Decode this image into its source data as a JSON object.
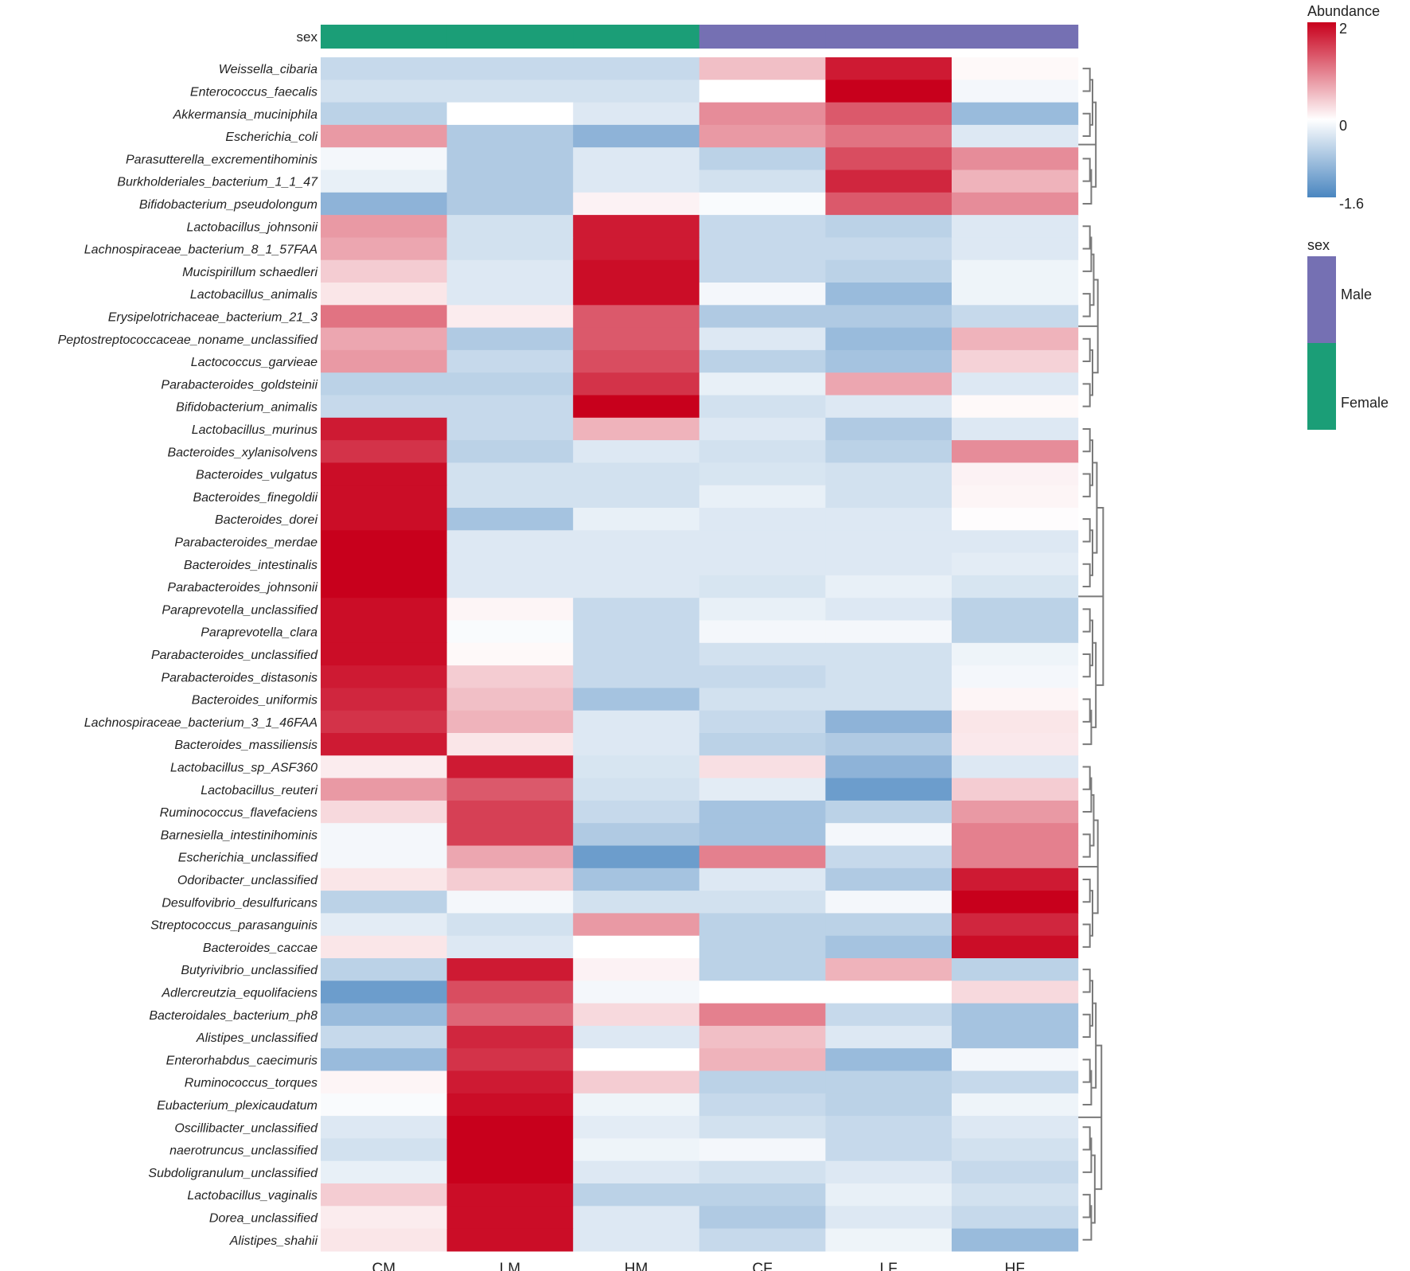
{
  "chart_data": {
    "type": "heatmap",
    "columns": [
      "CM",
      "LM",
      "HM",
      "CF",
      "LF",
      "HF"
    ],
    "column_annotation": {
      "title": "sex",
      "values": [
        "Female",
        "Female",
        "Female",
        "Male",
        "Male",
        "Male"
      ]
    },
    "rows": [
      "Weissella_cibaria",
      "Enterococcus_faecalis",
      "Akkermansia_muciniphila",
      "Escherichia_coli",
      "Parasutterella_excrementihominis",
      "Burkholderiales_bacterium_1_1_47",
      "Bifidobacterium_pseudolongum",
      "Lactobacillus_johnsonii",
      "Lachnospiraceae_bacterium_8_1_57FAA",
      "Mucispirillum schaedleri",
      "Lactobacillus_animalis",
      "Erysipelotrichaceae_bacterium_21_3",
      "Peptostreptococcaceae_noname_unclassified",
      "Lactococcus_garvieae",
      "Parabacteroides_goldsteinii",
      "Bifidobacterium_animalis",
      "Lactobacillus_murinus",
      "Bacteroides_xylanisolvens",
      "Bacteroides_vulgatus",
      "Bacteroides_finegoldii",
      "Bacteroides_dorei",
      "Parabacteroides_merdae",
      "Bacteroides_intestinalis",
      "Parabacteroides_johnsonii",
      "Paraprevotella_unclassified",
      "Paraprevotella_clara",
      "Parabacteroides_unclassified",
      "Parabacteroides_distasonis",
      "Bacteroides_uniformis",
      "Lachnospiraceae_bacterium_3_1_46FAA",
      "Bacteroides_massiliensis",
      "Lactobacillus_sp_ASF360",
      "Lactobacillus_reuteri",
      "Ruminococcus_flavefaciens",
      "Barnesiella_intestinihominis",
      "Escherichia_unclassified",
      "Odoribacter_unclassified",
      "Desulfovibrio_desulfuricans",
      "Streptococcus_parasanguinis",
      "Bacteroides_caccae",
      "Butyrivibrio_unclassified",
      "Adlercreutzia_equolifaciens",
      "Bacteroidales_bacterium_ph8",
      "Alistipes_unclassified",
      "Enterorhabdus_caecimuris",
      "Ruminococcus_torques",
      "Eubacterium_plexicaudatum",
      "Oscillibacter_unclassified",
      "naerotruncus_unclassified",
      "Subdoligranulum_unclassified",
      "Lactobacillus_vaginalis",
      "Dorea_unclassified",
      "Alistipes_shahii"
    ],
    "values": [
      [
        -0.5,
        -0.5,
        -0.5,
        0.5,
        1.8,
        0.05
      ],
      [
        -0.4,
        -0.4,
        -0.4,
        0.0,
        2.0,
        -0.1
      ],
      [
        -0.6,
        0.0,
        -0.3,
        0.9,
        1.3,
        -0.9
      ],
      [
        0.8,
        -0.7,
        -1.0,
        0.8,
        1.1,
        -0.3
      ],
      [
        -0.1,
        -0.7,
        -0.3,
        -0.6,
        1.4,
        0.9
      ],
      [
        -0.2,
        -0.7,
        -0.3,
        -0.4,
        1.7,
        0.6
      ],
      [
        -1.0,
        -0.7,
        0.1,
        -0.05,
        1.3,
        0.9
      ],
      [
        0.8,
        -0.4,
        1.8,
        -0.5,
        -0.6,
        -0.3
      ],
      [
        0.7,
        -0.4,
        1.8,
        -0.5,
        -0.5,
        -0.3
      ],
      [
        0.4,
        -0.3,
        1.9,
        -0.5,
        -0.6,
        -0.15
      ],
      [
        0.2,
        -0.3,
        1.9,
        -0.1,
        -0.9,
        -0.15
      ],
      [
        1.1,
        0.15,
        1.3,
        -0.7,
        -0.7,
        -0.5
      ],
      [
        0.7,
        -0.7,
        1.3,
        -0.3,
        -0.9,
        0.6
      ],
      [
        0.8,
        -0.5,
        1.4,
        -0.6,
        -0.8,
        0.35
      ],
      [
        -0.6,
        -0.6,
        1.6,
        -0.2,
        0.7,
        -0.3
      ],
      [
        -0.5,
        -0.5,
        2.0,
        -0.4,
        -0.3,
        0.05
      ],
      [
        1.8,
        -0.5,
        0.6,
        -0.3,
        -0.7,
        -0.3
      ],
      [
        1.6,
        -0.6,
        -0.3,
        -0.4,
        -0.6,
        0.9
      ],
      [
        1.9,
        -0.4,
        -0.4,
        -0.35,
        -0.4,
        0.1
      ],
      [
        1.9,
        -0.4,
        -0.4,
        -0.2,
        -0.4,
        0.08
      ],
      [
        1.9,
        -0.8,
        -0.2,
        -0.3,
        -0.3,
        0.02
      ],
      [
        2.0,
        -0.3,
        -0.3,
        -0.3,
        -0.3,
        -0.3
      ],
      [
        2.0,
        -0.3,
        -0.3,
        -0.3,
        -0.3,
        -0.25
      ],
      [
        2.0,
        -0.3,
        -0.3,
        -0.35,
        -0.2,
        -0.35
      ],
      [
        1.9,
        0.08,
        -0.5,
        -0.2,
        -0.3,
        -0.6
      ],
      [
        1.9,
        -0.05,
        -0.5,
        -0.1,
        -0.1,
        -0.6
      ],
      [
        1.9,
        0.05,
        -0.5,
        -0.4,
        -0.4,
        -0.15
      ],
      [
        1.8,
        0.4,
        -0.5,
        -0.5,
        -0.4,
        -0.1
      ],
      [
        1.7,
        0.5,
        -0.8,
        -0.4,
        -0.4,
        0.08
      ],
      [
        1.6,
        0.6,
        -0.3,
        -0.5,
        -1.0,
        0.2
      ],
      [
        1.8,
        0.2,
        -0.3,
        -0.6,
        -0.7,
        0.18
      ],
      [
        0.15,
        1.8,
        -0.35,
        0.25,
        -1.0,
        -0.3
      ],
      [
        0.8,
        1.3,
        -0.4,
        -0.25,
        -1.3,
        0.4
      ],
      [
        0.3,
        1.5,
        -0.5,
        -0.8,
        -0.6,
        0.8
      ],
      [
        -0.1,
        1.5,
        -0.7,
        -0.8,
        -0.1,
        1.0
      ],
      [
        -0.1,
        0.7,
        -1.3,
        1.0,
        -0.5,
        1.0
      ],
      [
        0.2,
        0.4,
        -0.8,
        -0.3,
        -0.7,
        1.8
      ],
      [
        -0.6,
        -0.1,
        -0.4,
        -0.4,
        -0.1,
        2.0
      ],
      [
        -0.25,
        -0.4,
        0.8,
        -0.6,
        -0.6,
        1.7
      ],
      [
        0.2,
        -0.3,
        0.0,
        -0.6,
        -0.8,
        1.9
      ],
      [
        -0.6,
        1.8,
        0.1,
        -0.6,
        0.6,
        -0.6
      ],
      [
        -1.3,
        1.4,
        -0.1,
        0.0,
        0.0,
        0.3
      ],
      [
        -0.9,
        1.2,
        0.3,
        1.0,
        -0.5,
        -0.8
      ],
      [
        -0.5,
        1.7,
        -0.3,
        0.5,
        -0.3,
        -0.8
      ],
      [
        -0.9,
        1.6,
        0.0,
        0.6,
        -0.9,
        -0.1
      ],
      [
        0.08,
        1.8,
        0.4,
        -0.6,
        -0.6,
        -0.5
      ],
      [
        -0.05,
        1.9,
        -0.15,
        -0.5,
        -0.6,
        -0.15
      ],
      [
        -0.3,
        2.0,
        -0.25,
        -0.4,
        -0.5,
        -0.3
      ],
      [
        -0.4,
        2.0,
        -0.15,
        -0.1,
        -0.5,
        -0.4
      ],
      [
        -0.2,
        2.0,
        -0.3,
        -0.4,
        -0.3,
        -0.5
      ],
      [
        0.4,
        1.9,
        -0.6,
        -0.6,
        -0.2,
        -0.4
      ],
      [
        0.15,
        1.9,
        -0.3,
        -0.7,
        -0.3,
        -0.5
      ],
      [
        0.2,
        1.9,
        -0.3,
        -0.5,
        -0.15,
        -0.9
      ]
    ],
    "color_scale": {
      "min": -1.6,
      "mid": 0,
      "max": 2
    },
    "legend": {
      "abundance_title": "Abundance",
      "abundance_ticks": [
        "2",
        "0",
        "-1.6"
      ],
      "sex_title": "sex",
      "sex_entries": [
        "Male",
        "Female"
      ]
    },
    "colors": {
      "low": "#4a86c0",
      "mid": "#ffffff",
      "high": "#c8001c",
      "Female": "#1b9e77",
      "Male": "#7570b3",
      "dendrogram": "#7a7a7a"
    }
  }
}
